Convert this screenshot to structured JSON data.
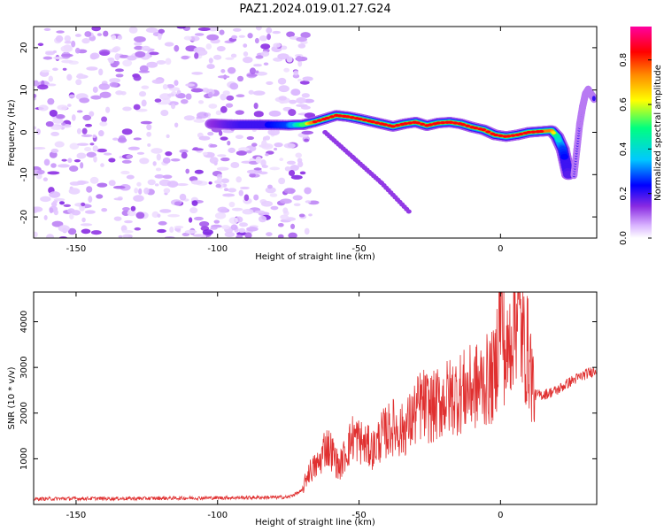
{
  "title": "PAZ1.2024.019.01.27.G24",
  "chart_data": [
    {
      "type": "heatmap",
      "xlabel": "Height of straight line (km)",
      "ylabel": "Frequency (Hz)",
      "xlim": [
        -165,
        34
      ],
      "ylim": [
        -25,
        25
      ],
      "xticks": [
        -150,
        -100,
        -50,
        0
      ],
      "yticks": [
        -20,
        -10,
        0,
        10,
        20
      ],
      "colorbar": {
        "label": "Normalized spectral amplitude",
        "range": [
          0,
          0.95
        ],
        "ticks": [
          0.0,
          0.2,
          0.4,
          0.6,
          0.8
        ],
        "colormap": [
          "#ffffff",
          "#d9b3ff",
          "#8a2be2",
          "#0000ff",
          "#00c8ff",
          "#00ff80",
          "#ffff00",
          "#ff8c00",
          "#ff0000",
          "#ff00a0"
        ]
      },
      "noise_region_x": [
        -165,
        -70
      ],
      "main_track": {
        "x": [
          -102,
          -95,
          -85,
          -75,
          -70,
          -66,
          -62,
          -58,
          -54,
          -50,
          -46,
          -42,
          -38,
          -34,
          -30,
          -26,
          -22,
          -18,
          -14,
          -10,
          -6,
          -2,
          2,
          6,
          10,
          14,
          18,
          20,
          22,
          24
        ],
        "y": [
          2.0,
          1.8,
          1.8,
          1.7,
          1.8,
          2.4,
          3.2,
          4.0,
          3.7,
          3.2,
          2.6,
          2.0,
          1.4,
          2.0,
          2.4,
          1.6,
          2.2,
          2.4,
          2.0,
          1.2,
          0.6,
          -0.6,
          -1.0,
          -0.6,
          0.0,
          0.2,
          0.4,
          -1.0,
          -4.0,
          -10.0
        ],
        "amplitude": [
          0.2,
          0.25,
          0.3,
          0.35,
          0.55,
          0.8,
          0.85,
          0.85,
          0.8,
          0.8,
          0.85,
          0.8,
          0.8,
          0.85,
          0.85,
          0.85,
          0.8,
          0.85,
          0.85,
          0.8,
          0.8,
          0.85,
          0.8,
          0.8,
          0.85,
          0.8,
          0.75,
          0.5,
          0.35,
          0.25
        ]
      },
      "faint_branch": {
        "x": [
          -62,
          -52,
          -42,
          -32
        ],
        "y": [
          0,
          -6,
          -12,
          -19
        ],
        "amplitude": 0.2
      },
      "right_edge_track": {
        "x": [
          26,
          27,
          28,
          29,
          30,
          31,
          33
        ],
        "y": [
          -10,
          -4,
          2,
          6,
          9,
          10,
          8
        ],
        "amplitude": 0.5
      }
    },
    {
      "type": "line",
      "xlabel": "Height of straight line (km)",
      "ylabel": "SNR (10 * v/v)",
      "xlim": [
        -165,
        34
      ],
      "ylim": [
        0,
        4650
      ],
      "xticks": [
        -150,
        -100,
        -50,
        0
      ],
      "yticks": [
        1000,
        2000,
        3000,
        4000
      ],
      "color": "#e03030",
      "series": [
        {
          "x": [
            -165,
            -150,
            -130,
            -110,
            -90,
            -75,
            -70,
            -68,
            -64,
            -62,
            -60,
            -57,
            -55,
            -52,
            -48,
            -45,
            -42,
            -38,
            -35,
            -32,
            -28,
            -24,
            -20,
            -16,
            -12,
            -8,
            -5,
            -2,
            0,
            2,
            4,
            6,
            8,
            10,
            12,
            15,
            20,
            25,
            30,
            34
          ],
          "y": [
            120,
            130,
            130,
            140,
            150,
            160,
            300,
            700,
            900,
            1300,
            1200,
            800,
            1100,
            1500,
            1300,
            1200,
            1500,
            1700,
            1600,
            1800,
            2200,
            2100,
            2300,
            2400,
            2500,
            2600,
            2700,
            2800,
            4300,
            3000,
            3900,
            4400,
            3500,
            3300,
            2400,
            2400,
            2500,
            2700,
            2850,
            2950
          ]
        }
      ]
    }
  ]
}
